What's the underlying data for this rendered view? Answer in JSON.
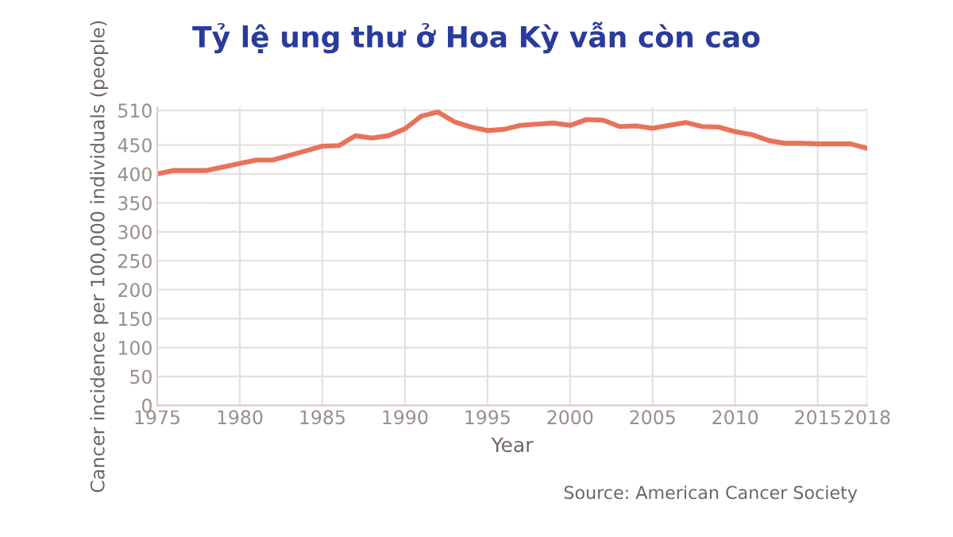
{
  "chart_data": {
    "type": "line",
    "title": "Tỷ lệ ung thư ở Hoa Kỳ vẫn còn cao",
    "xlabel": "Year",
    "ylabel": "Cancer incidence per 100,000 individuals (people)",
    "x": [
      1975,
      1976,
      1977,
      1978,
      1979,
      1980,
      1981,
      1982,
      1983,
      1984,
      1985,
      1986,
      1987,
      1988,
      1989,
      1990,
      1991,
      1992,
      1993,
      1994,
      1995,
      1996,
      1997,
      1998,
      1999,
      2000,
      2001,
      2002,
      2003,
      2004,
      2005,
      2006,
      2007,
      2008,
      2009,
      2010,
      2011,
      2012,
      2013,
      2014,
      2015,
      2016,
      2017,
      2018
    ],
    "series": [
      {
        "color": "#e8735a",
        "values": [
          400,
          406,
          406,
          406,
          412,
          418,
          424,
          424,
          432,
          440,
          448,
          449,
          466,
          462,
          466,
          478,
          500,
          507,
          490,
          481,
          475,
          477,
          484,
          486,
          488,
          484,
          494,
          493,
          482,
          483,
          479,
          484,
          489,
          482,
          481,
          473,
          468,
          458,
          453,
          453,
          452,
          452,
          452,
          444
        ]
      }
    ],
    "xlim": [
      1975,
      2018
    ],
    "xticks": [
      1975,
      1980,
      1985,
      1990,
      1995,
      2000,
      2005,
      2010,
      2015,
      2018
    ],
    "ylim": [
      0,
      515
    ],
    "yticks": [
      0,
      50,
      100,
      150,
      200,
      250,
      300,
      350,
      400,
      450,
      510
    ],
    "grid": true,
    "line_style": "solid",
    "marker": "none",
    "annotations": [
      "Source: American Cancer Society"
    ]
  }
}
